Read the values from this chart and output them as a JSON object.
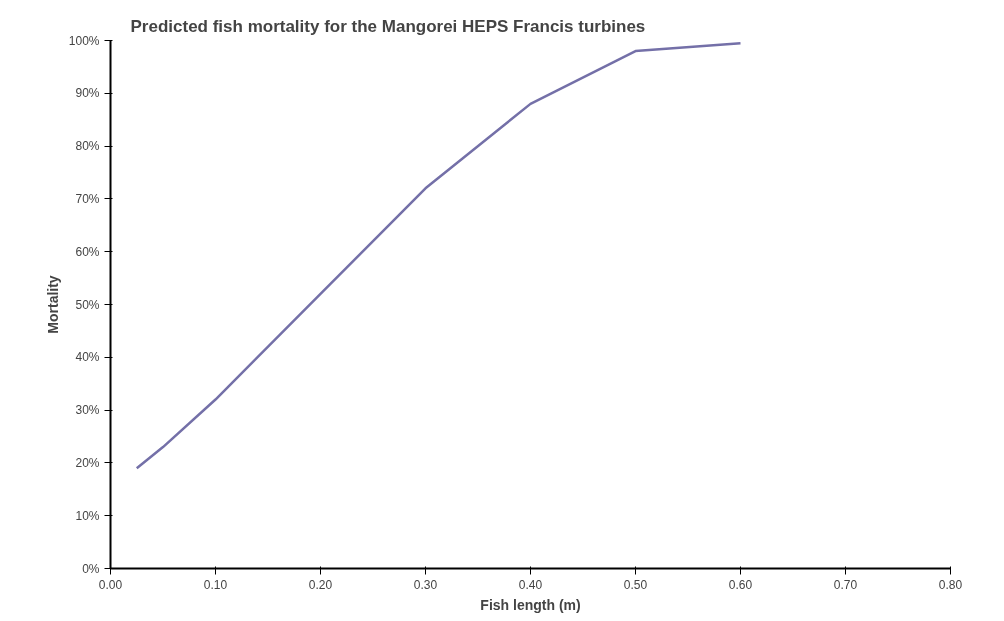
{
  "chart_data": {
    "type": "line",
    "title": "Predicted fish mortality for the Mangorei HEPS Francis turbines",
    "xlabel": "Fish length (m)",
    "ylabel": "Mortality",
    "x": [
      0.025,
      0.05,
      0.1,
      0.2,
      0.3,
      0.4,
      0.5,
      0.6
    ],
    "series": [
      {
        "color": "#7470a8",
        "values": [
          19,
          23,
          32,
          52,
          72,
          88,
          98,
          99.5
        ]
      }
    ],
    "xlim": [
      0,
      0.8
    ],
    "ylim": [
      0,
      100
    ],
    "xticks": [
      {
        "value": 0,
        "label": "0.00"
      },
      {
        "value": 0.1,
        "label": "0.10"
      },
      {
        "value": 0.2,
        "label": "0.20"
      },
      {
        "value": 0.3,
        "label": "0.30"
      },
      {
        "value": 0.4,
        "label": "0.40"
      },
      {
        "value": 0.5,
        "label": "0.50"
      },
      {
        "value": 0.6,
        "label": "0.60"
      },
      {
        "value": 0.7,
        "label": "0.70"
      },
      {
        "value": 0.8,
        "label": "0.80"
      }
    ],
    "yticks": [
      {
        "value": 0,
        "label": "0%"
      },
      {
        "value": 10,
        "label": "10%"
      },
      {
        "value": 20,
        "label": "20%"
      },
      {
        "value": 30,
        "label": "30%"
      },
      {
        "value": 40,
        "label": "40%"
      },
      {
        "value": 50,
        "label": "50%"
      },
      {
        "value": 60,
        "label": "60%"
      },
      {
        "value": 70,
        "label": "70%"
      },
      {
        "value": 80,
        "label": "80%"
      },
      {
        "value": 90,
        "label": "90%"
      },
      {
        "value": 100,
        "label": "100%"
      }
    ],
    "grid": false,
    "marker": "none",
    "line_style": "solid"
  }
}
